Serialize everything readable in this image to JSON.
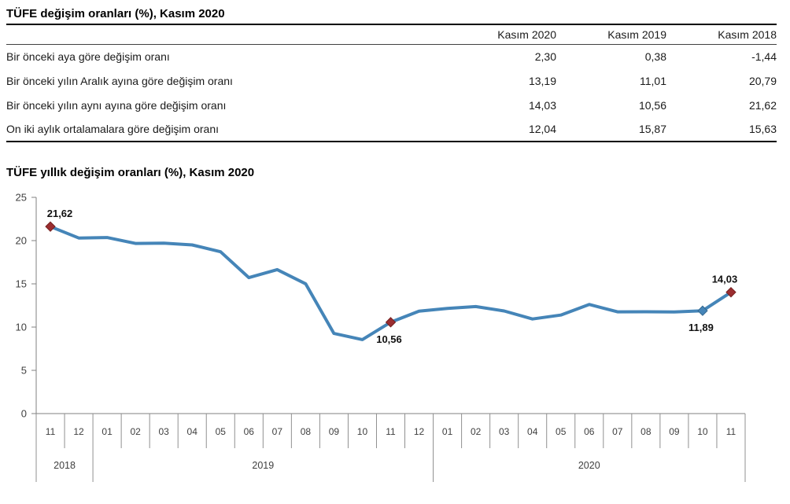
{
  "table": {
    "title": "TÜFE değişim oranları (%), Kasım 2020",
    "columns": [
      "Kasım 2020",
      "Kasım 2019",
      "Kasım 2018"
    ],
    "rows": [
      {
        "label": "Bir önceki aya göre değişim oranı",
        "values": [
          "2,30",
          "0,38",
          "-1,44"
        ]
      },
      {
        "label": "Bir önceki yılın Aralık ayına göre değişim oranı",
        "values": [
          "13,19",
          "11,01",
          "20,79"
        ]
      },
      {
        "label": "Bir önceki yılın aynı ayına göre değişim oranı",
        "values": [
          "14,03",
          "10,56",
          "21,62"
        ]
      },
      {
        "label": "On iki aylık ortalamalara göre değişim oranı",
        "values": [
          "12,04",
          "15,87",
          "15,63"
        ]
      }
    ]
  },
  "chart": {
    "title": "TÜFE yıllık değişim oranları (%), Kasım 2020"
  },
  "chart_data": {
    "type": "line",
    "title": "TÜFE yıllık değişim oranları (%), Kasım 2020",
    "x": [
      "11",
      "12",
      "01",
      "02",
      "03",
      "04",
      "05",
      "06",
      "07",
      "08",
      "09",
      "10",
      "11",
      "12",
      "01",
      "02",
      "03",
      "04",
      "05",
      "06",
      "07",
      "08",
      "09",
      "10",
      "11"
    ],
    "year_groups": [
      {
        "label": "2018",
        "count": 2
      },
      {
        "label": "2019",
        "count": 12
      },
      {
        "label": "2020",
        "count": 11
      }
    ],
    "values": [
      21.62,
      20.3,
      20.35,
      19.67,
      19.71,
      19.5,
      18.71,
      15.72,
      16.65,
      15.01,
      9.26,
      8.55,
      10.56,
      11.84,
      12.15,
      12.37,
      11.86,
      10.94,
      11.39,
      12.62,
      11.76,
      11.77,
      11.75,
      11.89,
      14.03
    ],
    "ylim": [
      0,
      25
    ],
    "yticks": [
      0,
      5,
      10,
      15,
      20,
      25
    ],
    "grid": false,
    "legend": "none",
    "annotations": [
      {
        "index": 0,
        "label": "21,62",
        "marker": "red",
        "position": "above"
      },
      {
        "index": 12,
        "label": "10,56",
        "marker": "red",
        "position": "below"
      },
      {
        "index": 23,
        "label": "11,89",
        "marker": "blue",
        "position": "below"
      },
      {
        "index": 24,
        "label": "14,03",
        "marker": "red",
        "position": "above"
      }
    ],
    "colors": {
      "line": "#4585b8",
      "marker_red": "#9b2d30",
      "marker_red_edge": "#74201f",
      "marker_blue": "#4585b8",
      "marker_blue_edge": "#33688f",
      "axis": "#808080",
      "separator": "#909090",
      "tick_text": "#404040",
      "annotation_text": "#111111"
    }
  }
}
